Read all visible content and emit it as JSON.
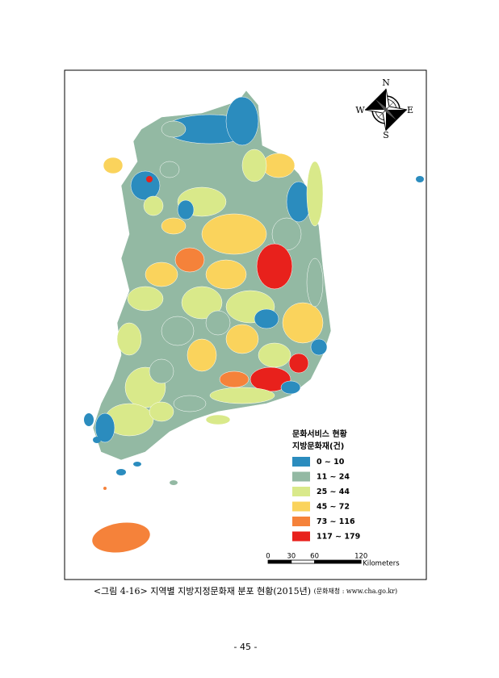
{
  "map": {
    "compass": {
      "n": "N",
      "e": "E",
      "s": "S",
      "w": "W"
    },
    "legend": {
      "title": "문화서비스 현황",
      "subtitle": "지방문화재(건)",
      "items": [
        {
          "label": "0 ~ 10",
          "color": "#2b8cbe"
        },
        {
          "label": "11 ~ 24",
          "color": "#93b9a3"
        },
        {
          "label": "25 ~ 44",
          "color": "#d9e98a"
        },
        {
          "label": "45 ~ 72",
          "color": "#fad35c"
        },
        {
          "label": "73 ~ 116",
          "color": "#f5823a"
        },
        {
          "label": "117 ~ 179",
          "color": "#e8211c"
        }
      ]
    },
    "scale": {
      "ticks": [
        0,
        30,
        60,
        120
      ],
      "unit": "Kilometers"
    }
  },
  "caption": {
    "text": "<그림 4-16> 지역별 지방지정문화재 분포 현황(2015년)",
    "source": "(문화재청 : www.cha.go.kr)"
  },
  "page_number": "- 45 -"
}
